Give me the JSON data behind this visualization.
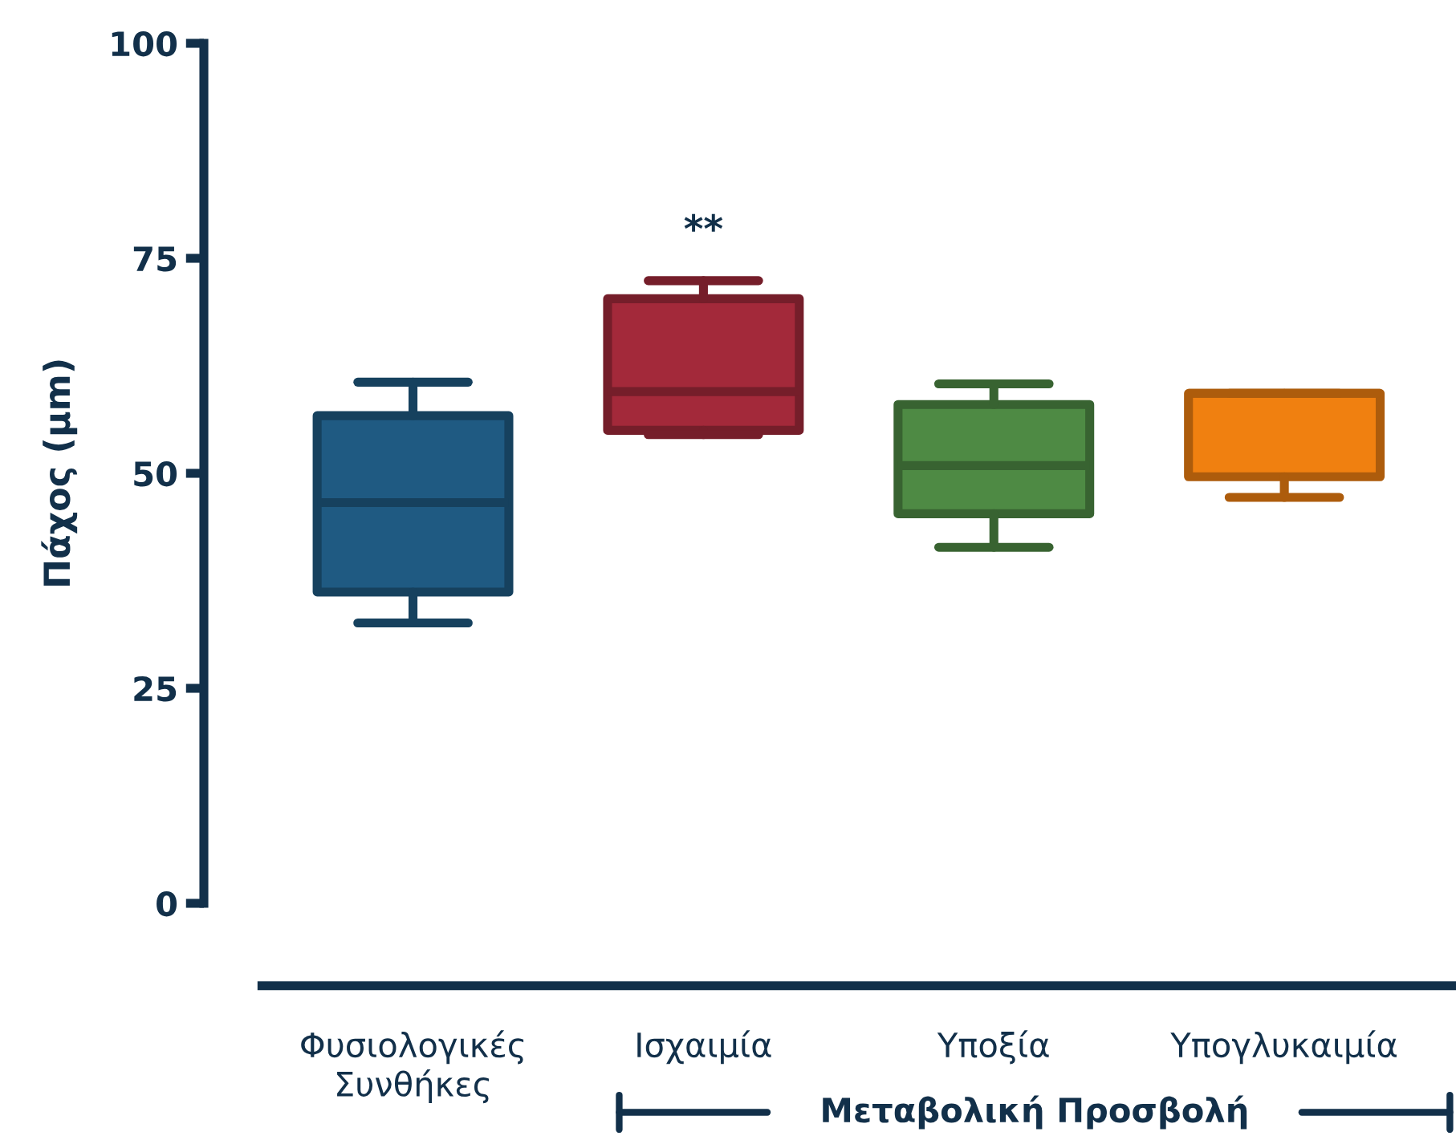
{
  "chart_data": {
    "type": "box",
    "ylabel": "Πάχος (μm)",
    "categories": [
      "Φυσιολογικές\nΣυνθήκες",
      "Ισχαιμία",
      "Υποξία",
      "Υπογλυκαιμία"
    ],
    "colors": [
      "#1f5a82",
      "#a3293a",
      "#4e8a44",
      "#f08010"
    ],
    "boxes": [
      {
        "low": 32.6,
        "q1": 36.2,
        "median": 46.6,
        "q3": 56.7,
        "high": 60.6
      },
      {
        "low": 54.5,
        "q1": 55.0,
        "median": 59.5,
        "q3": 70.3,
        "high": 72.4
      },
      {
        "low": 41.4,
        "q1": 45.3,
        "median": 50.9,
        "q3": 58.0,
        "high": 60.4
      },
      {
        "low": 47.2,
        "q1": 49.6,
        "median": 59.3,
        "q3": 59.3,
        "high": 59.3
      }
    ],
    "ylim": [
      0,
      100
    ],
    "yticks": [
      0,
      25,
      50,
      75,
      100
    ],
    "grid": false,
    "annotations": [
      "**",
      "Μεταβολική Προσβολή"
    ]
  }
}
